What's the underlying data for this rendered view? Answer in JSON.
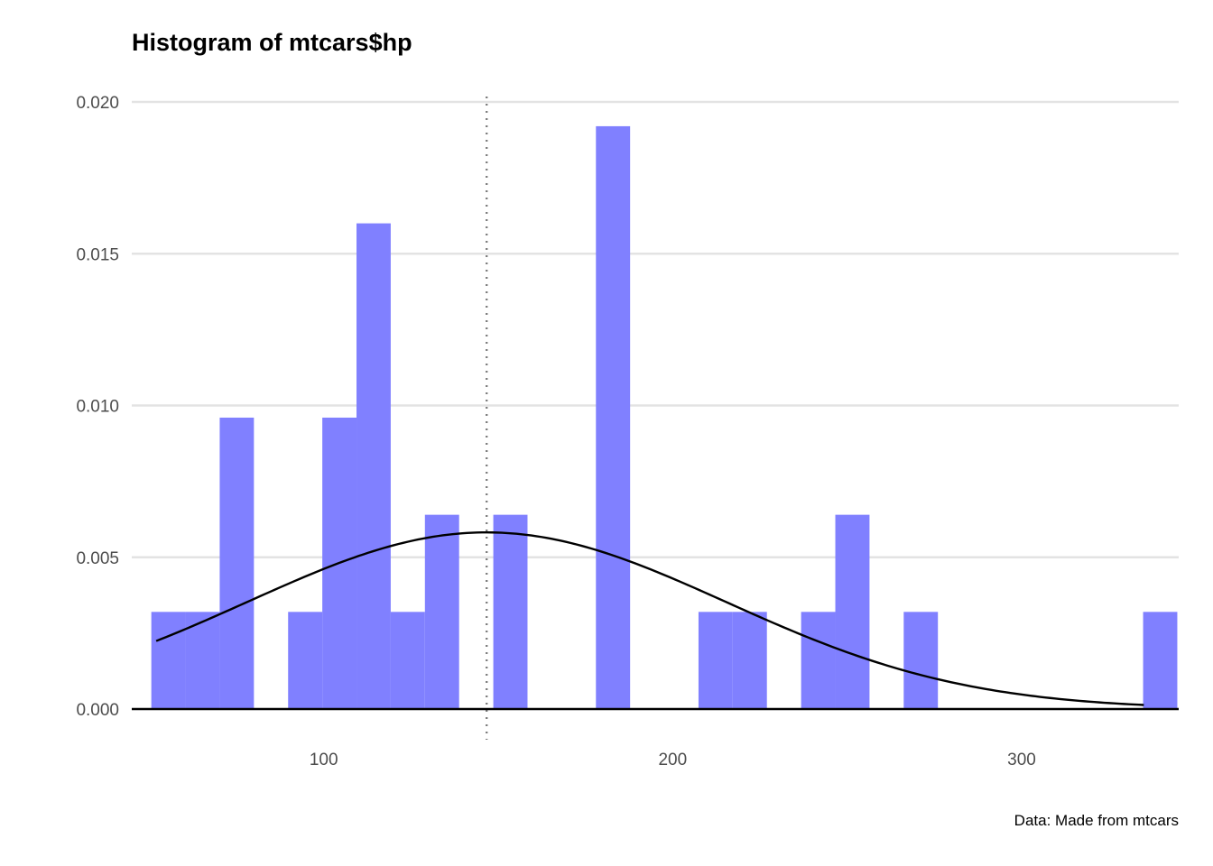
{
  "chart_data": {
    "type": "bar",
    "title": "Histogram of mtcars$hp",
    "caption": "Data: Made from mtcars",
    "xlabel": "",
    "ylabel": "",
    "xlim": [
      45,
      345
    ],
    "ylim": [
      0,
      0.02
    ],
    "x_ticks": [
      100,
      200,
      300
    ],
    "x_tick_labels": [
      "100",
      "200",
      "300"
    ],
    "y_ticks": [
      0,
      0.005,
      0.01,
      0.015,
      0.02
    ],
    "y_tick_labels": [
      "0.000",
      "0.005",
      "0.010",
      "0.015",
      "0.020"
    ],
    "grid": "horizontal major",
    "bin_width": 9.8,
    "bins": [
      {
        "center": 55.5,
        "density": 0.0032
      },
      {
        "center": 65.3,
        "density": 0.0032
      },
      {
        "center": 75.1,
        "density": 0.0096
      },
      {
        "center": 84.9,
        "density": 0
      },
      {
        "center": 94.7,
        "density": 0.0032
      },
      {
        "center": 104.5,
        "density": 0.0096
      },
      {
        "center": 114.3,
        "density": 0.016
      },
      {
        "center": 124.1,
        "density": 0.0032
      },
      {
        "center": 133.9,
        "density": 0.0064
      },
      {
        "center": 143.7,
        "density": 0
      },
      {
        "center": 153.5,
        "density": 0.0064
      },
      {
        "center": 163.3,
        "density": 0
      },
      {
        "center": 173.1,
        "density": 0
      },
      {
        "center": 182.9,
        "density": 0.0192
      },
      {
        "center": 192.7,
        "density": 0
      },
      {
        "center": 202.5,
        "density": 0
      },
      {
        "center": 212.3,
        "density": 0.0032
      },
      {
        "center": 222.1,
        "density": 0.0032
      },
      {
        "center": 231.9,
        "density": 0
      },
      {
        "center": 241.7,
        "density": 0.0032
      },
      {
        "center": 251.5,
        "density": 0.0064
      },
      {
        "center": 261.3,
        "density": 0
      },
      {
        "center": 271.1,
        "density": 0.0032
      },
      {
        "center": 280.9,
        "density": 0
      },
      {
        "center": 290.7,
        "density": 0
      },
      {
        "center": 300.5,
        "density": 0
      },
      {
        "center": 310.3,
        "density": 0
      },
      {
        "center": 320.1,
        "density": 0
      },
      {
        "center": 329.9,
        "density": 0
      },
      {
        "center": 339.7,
        "density": 0.0032
      }
    ],
    "normal_curve": {
      "mean": 146.69,
      "sd": 68.56,
      "from": 52,
      "to": 335
    },
    "mean_line_x": 146.69,
    "colors": {
      "bar": "#8080ff",
      "curve": "#000000",
      "mean_line": "#7f7f7f",
      "grid": "#e3e3e3",
      "baseline": "#000000"
    }
  }
}
